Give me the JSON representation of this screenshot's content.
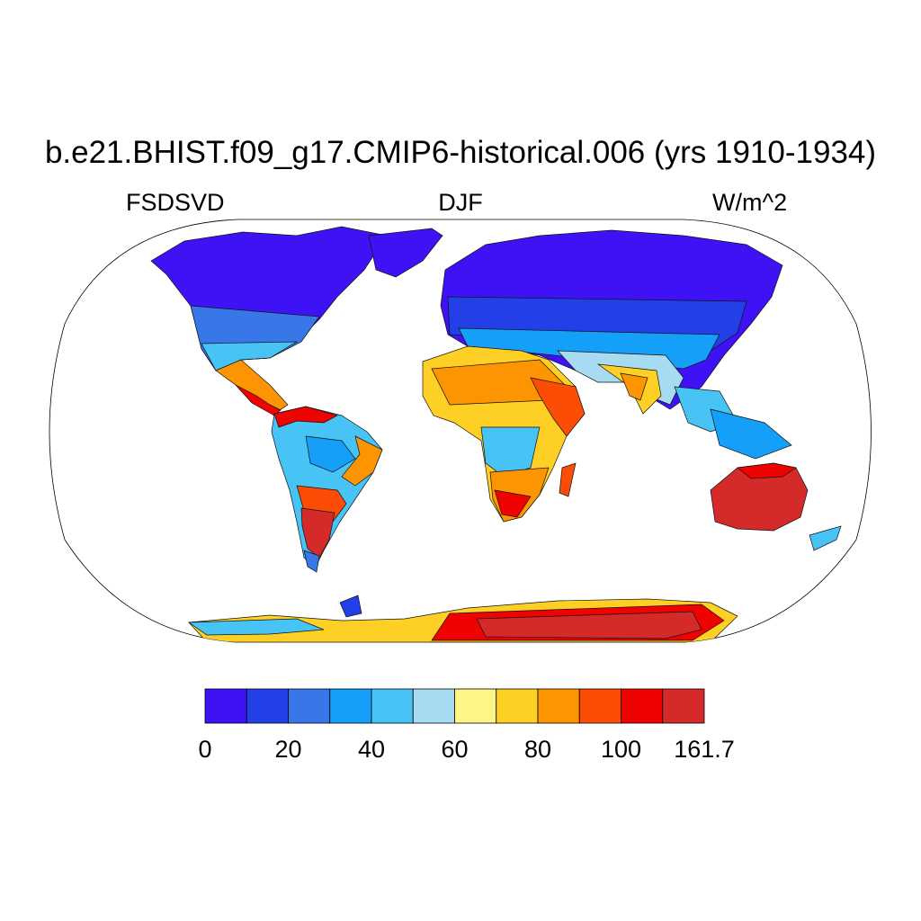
{
  "title": "b.e21.BHIST.f09_g17.CMIP6-historical.006 (yrs 1910-1934)",
  "left_label": "FSDSVD",
  "center_label": "DJF",
  "right_label": "W/m^2",
  "map": {
    "projection": "Robinson",
    "field": "FSDSVD",
    "season": "DJF",
    "ocean_masked": true,
    "land_summary": [
      {
        "region": "Arctic / northern high latitudes",
        "level_bin": "0-10"
      },
      {
        "region": "Northern mid-latitudes",
        "level_bin": "10-40"
      },
      {
        "region": "Sahara / Arabia",
        "level_bin": "60-90"
      },
      {
        "region": "Southern Africa",
        "level_bin": "80-110"
      },
      {
        "region": "Patagonia / Argentina",
        "level_bin": "100-161.7"
      },
      {
        "region": "Australia",
        "level_bin": "100-161.7"
      },
      {
        "region": "East Antarctica",
        "level_bin": "100-161.7"
      }
    ]
  },
  "colorbar": {
    "colors": [
      "#3f12f5",
      "#2340e8",
      "#3777e8",
      "#14a0f9",
      "#48c3f5",
      "#a7dbf1",
      "#fef587",
      "#fed026",
      "#fd9502",
      "#fc4d06",
      "#ee0300",
      "#d52a2a"
    ],
    "tick_labels": [
      "0",
      "20",
      "40",
      "60",
      "80",
      "100",
      "161.7"
    ],
    "tick_bins": [
      0,
      2,
      4,
      6,
      8,
      10,
      12
    ]
  }
}
